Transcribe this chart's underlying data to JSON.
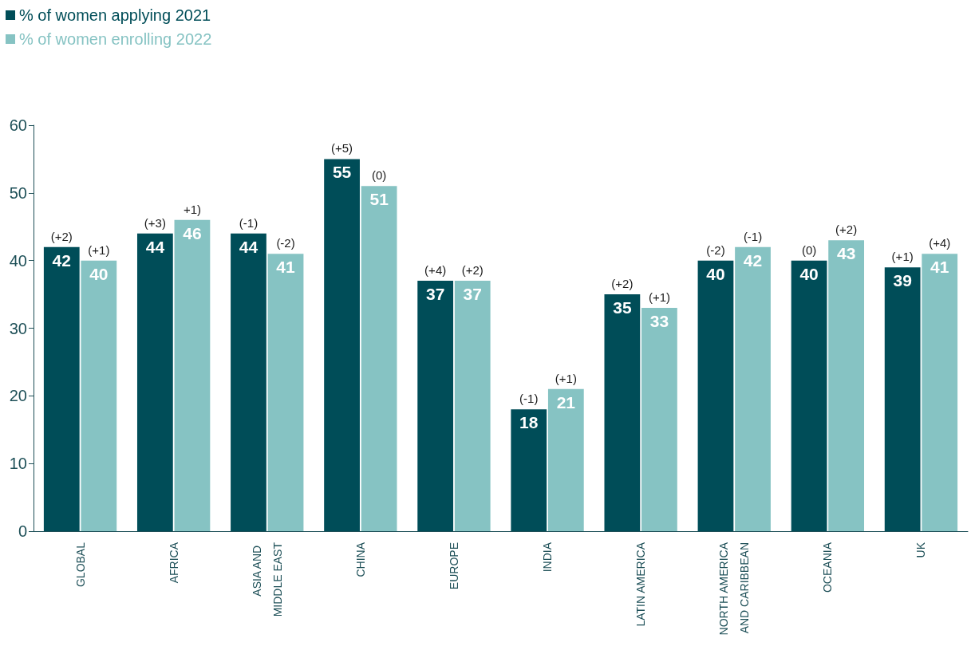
{
  "chart_data": {
    "type": "bar",
    "categories": [
      "GLOBAL",
      "AFRICA",
      "ASIA AND MIDDLE EAST",
      "CHINA",
      "EUROPE",
      "INDIA",
      "LATIN AMERICA",
      "NORTH AMERICA AND CARIBBEAN",
      "OCEANIA",
      "UK"
    ],
    "series": [
      {
        "name": "% of women applying 2021",
        "color": "#004d58",
        "values": [
          42,
          44,
          44,
          55,
          37,
          18,
          35,
          40,
          40,
          39
        ]
      },
      {
        "name": "% of women enrolling 2022",
        "color": "#86c3c3",
        "values": [
          40,
          46,
          41,
          51,
          37,
          21,
          33,
          42,
          43,
          41
        ]
      }
    ],
    "annotations": [
      {
        "text": "(+2)",
        "x": "GLOBAL",
        "y": 42
      },
      {
        "text": "(+1)",
        "x": "GLOBAL",
        "y": 40
      },
      {
        "text": "(+3)",
        "x": "AFRICA",
        "y": 44
      },
      {
        "text": "+1)",
        "x": "AFRICA",
        "y": 46
      },
      {
        "text": "(-1)",
        "x": "ASIA AND MIDDLE EAST",
        "y": 44
      },
      {
        "text": "(-2)",
        "x": "ASIA AND MIDDLE EAST",
        "y": 41
      },
      {
        "text": "(+5)",
        "x": "CHINA",
        "y": 55
      },
      {
        "text": "(0)",
        "x": "CHINA",
        "y": 51
      },
      {
        "text": "(+4)",
        "x": "EUROPE",
        "y": 37
      },
      {
        "text": "(+2)",
        "x": "EUROPE",
        "y": 37
      },
      {
        "text": "(-1)",
        "x": "INDIA",
        "y": 18
      },
      {
        "text": "(+1)",
        "x": "INDIA",
        "y": 21
      },
      {
        "text": "(+2)",
        "x": "LATIN AMERICA",
        "y": 35
      },
      {
        "text": "(+1)",
        "x": "LATIN AMERICA",
        "y": 33
      },
      {
        "text": "(-2)",
        "x": "NORTH AMERICA AND CARIBBEAN",
        "y": 40
      },
      {
        "text": "(-1)",
        "x": "NORTH AMERICA AND CARIBBEAN",
        "y": 42
      },
      {
        "text": "(0)",
        "x": "OCEANIA",
        "y": 40
      },
      {
        "text": "(+2)",
        "x": "OCEANIA",
        "y": 43
      },
      {
        "text": "(+1)",
        "x": "UK",
        "y": 39
      },
      {
        "text": "(+4)",
        "x": "UK",
        "y": 41
      }
    ],
    "ylim": [
      0,
      60
    ],
    "yticks": [
      0,
      10,
      20,
      30,
      40,
      50,
      60
    ],
    "data_labels": true,
    "legend": "top left",
    "grid": false
  }
}
